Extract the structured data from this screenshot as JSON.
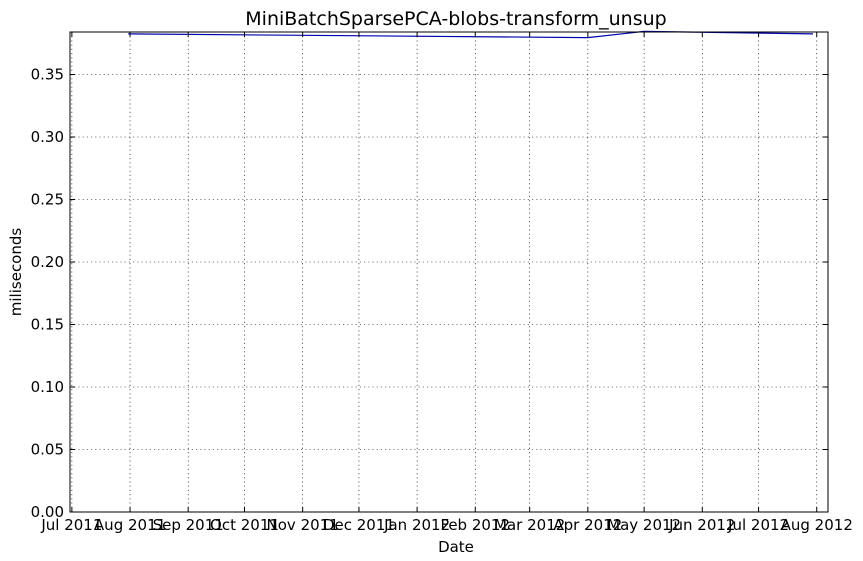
{
  "chart_data": {
    "type": "line",
    "title": "MiniBatchSparsePCA-blobs-transform_unsup",
    "xlabel": "Date",
    "ylabel": "miliseconds",
    "x_type": "date",
    "xlim": [
      "2011-06-30",
      "2012-08-07"
    ],
    "ylim": [
      0,
      0.384
    ],
    "grid": true,
    "x_ticks": [
      "2011-07-01",
      "2011-08-01",
      "2011-09-01",
      "2011-10-01",
      "2011-11-01",
      "2011-12-01",
      "2012-01-01",
      "2012-02-01",
      "2012-03-01",
      "2012-04-01",
      "2012-05-01",
      "2012-06-01",
      "2012-07-01",
      "2012-08-01"
    ],
    "x_tick_labels": [
      "Jul 2011",
      "Aug 2011",
      "Sep 2011",
      "Oct 2011",
      "Nov 2011",
      "Dec 2011",
      "Jan 2012",
      "Feb 2012",
      "Mar 2012",
      "Apr 2012",
      "May 2012",
      "Jun 2012",
      "Jul 2012",
      "Aug 2012"
    ],
    "y_ticks": [
      0.0,
      0.05,
      0.1,
      0.15,
      0.2,
      0.25,
      0.3,
      0.35
    ],
    "y_tick_labels": [
      "0.00",
      "0.05",
      "0.10",
      "0.15",
      "0.20",
      "0.25",
      "0.30",
      "0.35"
    ],
    "series": [
      {
        "color": "#0000aa",
        "x": [
          "2011-07-31",
          "2012-04-01",
          "2012-05-01",
          "2012-07-30"
        ],
        "y": [
          0.3825,
          0.3795,
          0.3845,
          0.3825
        ]
      }
    ]
  }
}
